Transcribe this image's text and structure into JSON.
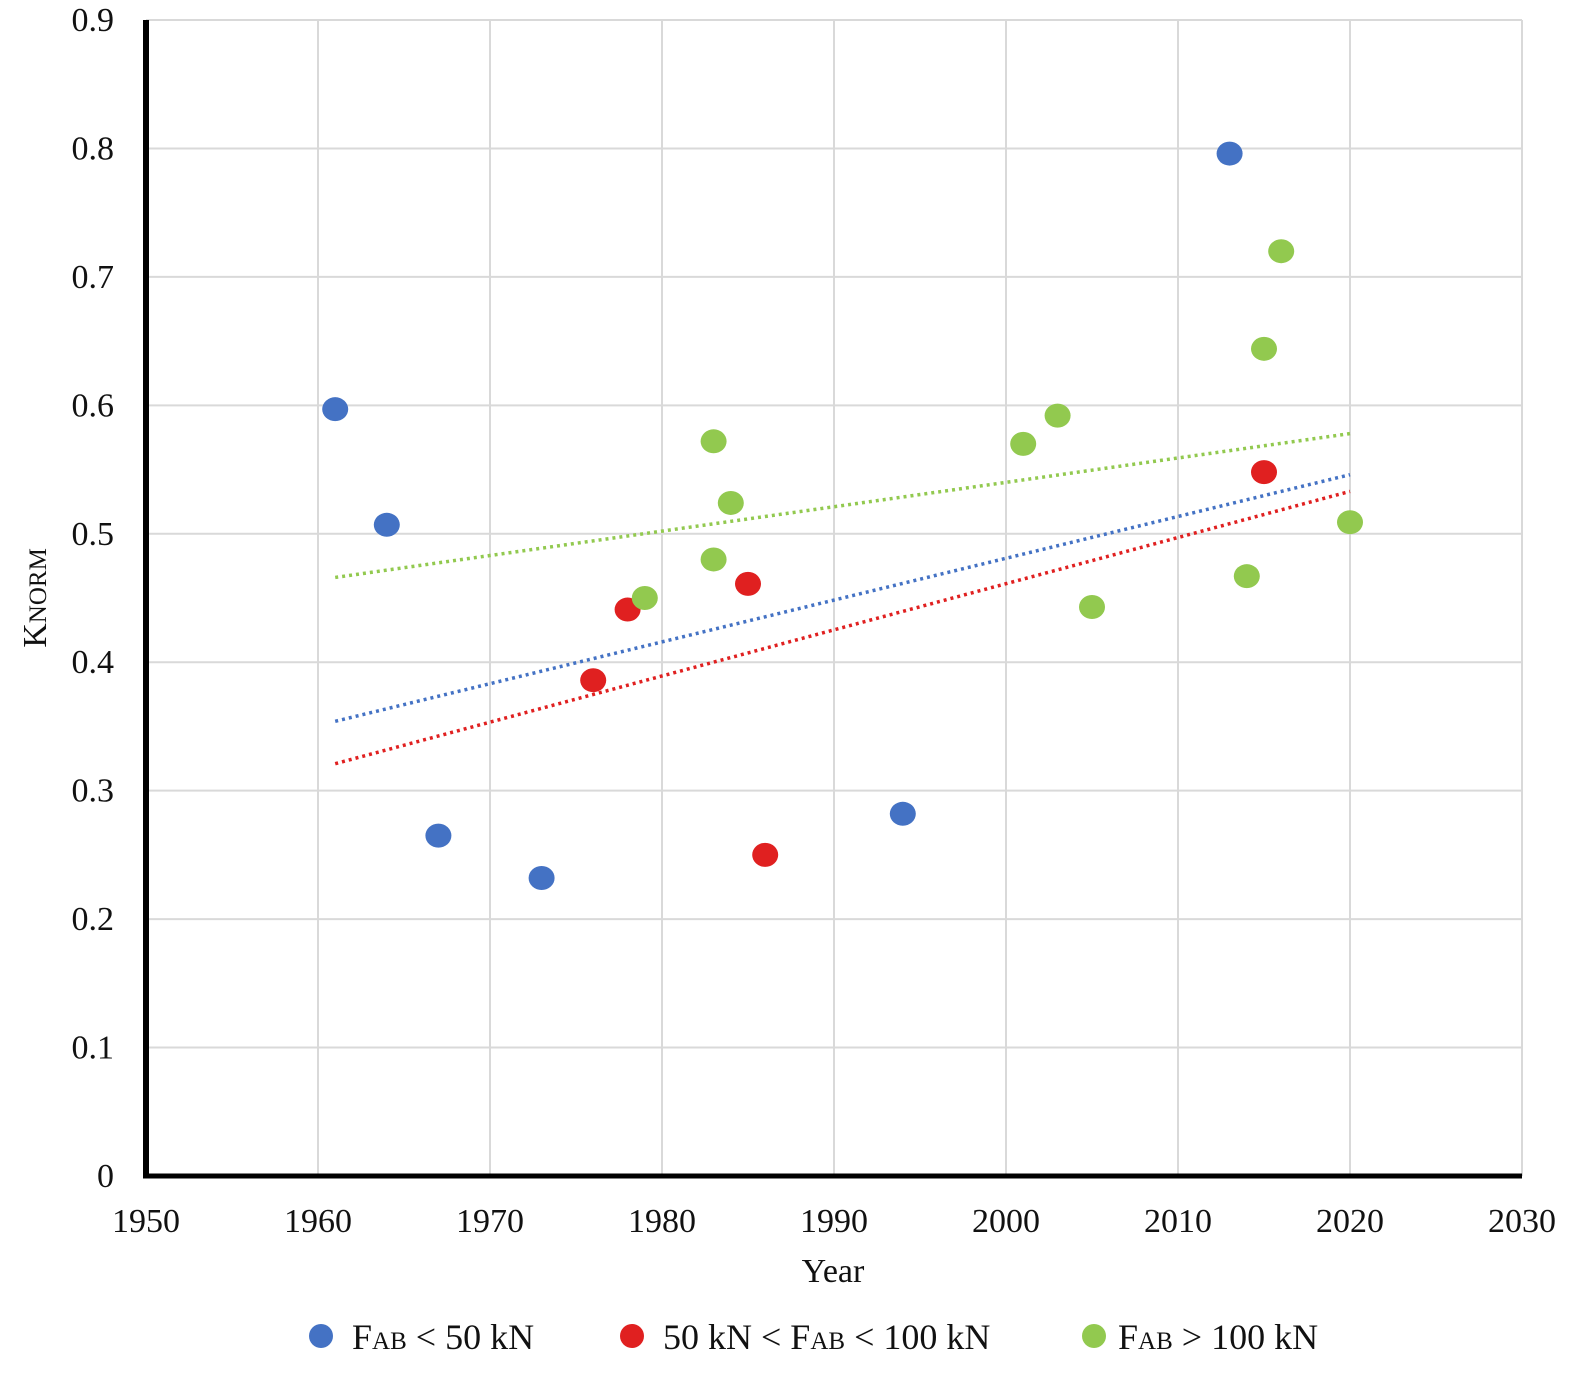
{
  "chart_data": {
    "type": "scatter",
    "title": "",
    "xlabel": "Year",
    "ylabel": {
      "main": "K",
      "sub": "NORM"
    },
    "xlim": [
      1950,
      2030
    ],
    "ylim": [
      0,
      0.9
    ],
    "x_ticks": [
      "1950",
      "1960",
      "1970",
      "1980",
      "1990",
      "2000",
      "2010",
      "2020",
      "2030"
    ],
    "y_ticks": [
      "0",
      "0.1",
      "0.2",
      "0.3",
      "0.4",
      "0.5",
      "0.6",
      "0.7",
      "0.8",
      "0.9"
    ],
    "grid": true,
    "legend_position": "bottom",
    "series": [
      {
        "name": "FAB < 50 kN",
        "legend": {
          "pre": "F",
          "sub": "AB",
          "post": " < 50 kN"
        },
        "color": "#4472C4",
        "points": [
          {
            "x": 1961,
            "y": 0.597
          },
          {
            "x": 1964,
            "y": 0.507
          },
          {
            "x": 1967,
            "y": 0.265
          },
          {
            "x": 1973,
            "y": 0.232
          },
          {
            "x": 1994,
            "y": 0.282
          },
          {
            "x": 2013,
            "y": 0.796
          }
        ],
        "trendline": {
          "style": "dotted",
          "x": [
            1961,
            2020
          ],
          "y": [
            0.354,
            0.546
          ]
        }
      },
      {
        "name": "50 kN < FAB < 100 kN",
        "legend": {
          "pre": "50 kN < F",
          "sub": "AB",
          "post": " < 100 kN"
        },
        "color": "#E02020",
        "points": [
          {
            "x": 1976,
            "y": 0.386
          },
          {
            "x": 1978,
            "y": 0.441
          },
          {
            "x": 1985,
            "y": 0.461
          },
          {
            "x": 1986,
            "y": 0.25
          },
          {
            "x": 2015,
            "y": 0.548
          }
        ],
        "trendline": {
          "style": "dotted",
          "x": [
            1961,
            2020
          ],
          "y": [
            0.321,
            0.533
          ]
        }
      },
      {
        "name": "FAB > 100 kN",
        "legend": {
          "pre": "F",
          "sub": "AB",
          "post": " > 100 kN"
        },
        "color": "#92C94F",
        "points": [
          {
            "x": 1979,
            "y": 0.45
          },
          {
            "x": 1983,
            "y": 0.572
          },
          {
            "x": 1983,
            "y": 0.48
          },
          {
            "x": 1984,
            "y": 0.524
          },
          {
            "x": 2001,
            "y": 0.57
          },
          {
            "x": 2003,
            "y": 0.592
          },
          {
            "x": 2005,
            "y": 0.443
          },
          {
            "x": 2014,
            "y": 0.467
          },
          {
            "x": 2015,
            "y": 0.644
          },
          {
            "x": 2016,
            "y": 0.72
          },
          {
            "x": 2020,
            "y": 0.509
          }
        ],
        "trendline": {
          "style": "dotted",
          "x": [
            1961,
            2020
          ],
          "y": [
            0.466,
            0.578
          ]
        }
      }
    ]
  }
}
